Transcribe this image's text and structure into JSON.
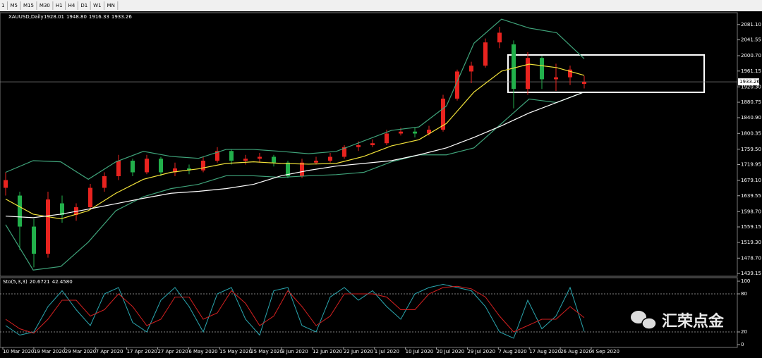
{
  "toolbar": {
    "buttons": [
      "1",
      "M5",
      "M15",
      "M30",
      "H1",
      "H4",
      "D1",
      "W1",
      "MN"
    ]
  },
  "watermark": "汇荣点金",
  "chart_data": [
    {
      "type": "candlestick",
      "title": "XAUUSD,Daily",
      "header_values": [
        "1928.01",
        "1948.80",
        "1916.33",
        "1933.26"
      ],
      "up_color": "#e8231f",
      "down_color": "#22b04b",
      "open": [
        1660,
        1640,
        1560,
        1490,
        1620,
        1590,
        1610,
        1660,
        1690,
        1730,
        1700,
        1735,
        1700,
        1710,
        1705,
        1730,
        1755,
        1730,
        1735,
        1740,
        1725,
        1690,
        1725,
        1730,
        1740,
        1765,
        1770,
        1775,
        1800,
        1805,
        1800,
        1810,
        1890,
        1960,
        1975,
        2035,
        2030,
        1915,
        1995,
        1940,
        1945,
        1928.01
      ],
      "high": [
        1700,
        1650,
        1580,
        1650,
        1640,
        1620,
        1670,
        1700,
        1745,
        1735,
        1745,
        1740,
        1725,
        1720,
        1740,
        1765,
        1760,
        1745,
        1750,
        1745,
        1730,
        1735,
        1740,
        1750,
        1770,
        1780,
        1785,
        1810,
        1815,
        1815,
        1820,
        1900,
        1965,
        1985,
        2045,
        2075,
        2040,
        2010,
        2000,
        1980,
        1975,
        1948.8
      ],
      "low": [
        1640,
        1500,
        1455,
        1480,
        1570,
        1575,
        1605,
        1650,
        1680,
        1690,
        1695,
        1690,
        1690,
        1695,
        1700,
        1725,
        1720,
        1720,
        1725,
        1715,
        1685,
        1685,
        1720,
        1725,
        1735,
        1755,
        1765,
        1770,
        1795,
        1790,
        1795,
        1805,
        1885,
        1930,
        1970,
        2020,
        1865,
        1900,
        1915,
        1910,
        1925,
        1916.33
      ],
      "close": [
        1680,
        1560,
        1490,
        1630,
        1590,
        1610,
        1660,
        1690,
        1730,
        1700,
        1735,
        1700,
        1710,
        1705,
        1730,
        1755,
        1730,
        1735,
        1740,
        1725,
        1690,
        1725,
        1730,
        1740,
        1765,
        1770,
        1775,
        1800,
        1805,
        1800,
        1810,
        1890,
        1960,
        1975,
        2035,
        2060,
        1915,
        1995,
        1940,
        1945,
        1965,
        1933.26
      ],
      "overlays": [
        {
          "color": "#3fa37a",
          "values": [
            1700,
            1730,
            1727,
            1682,
            1727,
            1754,
            1741,
            1736,
            1759,
            1759,
            1754,
            1748,
            1754,
            1781,
            1808,
            1817,
            1871,
            2033,
            2095,
            2072,
            2060,
            1993
          ]
        },
        {
          "color": "#3fa37a",
          "values": [
            1565,
            1448,
            1457,
            1520,
            1601,
            1637,
            1658,
            1669,
            1691,
            1691,
            1687,
            1691,
            1694,
            1700,
            1727,
            1745,
            1745,
            1763,
            1826,
            1889,
            1880,
            1907
          ]
        },
        {
          "color": "#f2e33a",
          "values": [
            1631,
            1592,
            1580,
            1601,
            1646,
            1682,
            1700,
            1709,
            1723,
            1727,
            1723,
            1721,
            1723,
            1741,
            1768,
            1784,
            1826,
            1907,
            1961,
            1979,
            1970,
            1950
          ]
        },
        {
          "color": "#ffffff",
          "values": [
            1587,
            1583,
            1592,
            1605,
            1619,
            1633,
            1646,
            1651,
            1658,
            1669,
            1691,
            1705,
            1716,
            1723,
            1730,
            1745,
            1763,
            1790,
            1820,
            1853,
            1880,
            1907
          ]
        }
      ],
      "last_price": {
        "value": 1933.26,
        "label": "1933.26"
      },
      "ylim": [
        1435.6,
        2108
      ],
      "yticks": [
        {
          "value": 2081.1,
          "label": "2081.10"
        },
        {
          "value": 2041.55,
          "label": "2041.55"
        },
        {
          "value": 2000.7,
          "label": "2000.70"
        },
        {
          "value": 1961.15,
          "label": "1961.15"
        },
        {
          "value": 1920.3,
          "label": "1920.30"
        },
        {
          "value": 1880.75,
          "label": "1880.75"
        },
        {
          "value": 1840.9,
          "label": "1840.90"
        },
        {
          "value": 1800.35,
          "label": "1800.35"
        },
        {
          "value": 1759.5,
          "label": "1759.50"
        },
        {
          "value": 1719.95,
          "label": "1719.95"
        },
        {
          "value": 1679.1,
          "label": "1679.10"
        },
        {
          "value": 1639.55,
          "label": "1639.55"
        },
        {
          "value": 1598.7,
          "label": "1598.70"
        },
        {
          "value": 1559.15,
          "label": "1559.15"
        },
        {
          "value": 1519.3,
          "label": "1519.30"
        },
        {
          "value": 1478.7,
          "label": "1478.70"
        },
        {
          "value": 1439.15,
          "label": "1439.15"
        }
      ],
      "x_labels": [
        "10 Mar 2020",
        "19 Mar 2020",
        "29 Mar 2020",
        "7 Apr 2020",
        "17 Apr 2020",
        "27 Apr 2020",
        "6 May 2020",
        "15 May 2020",
        "25 May 2020",
        "3 Jun 2020",
        "12 Jun 2020",
        "22 Jun 2020",
        "1 Jul 2020",
        "10 Jul 2020",
        "20 Jul 2020",
        "29 Jul 2020",
        "7 Aug 2020",
        "17 Aug 2020",
        "26 Aug 2020",
        "4 Sep 2020"
      ]
    },
    {
      "type": "line",
      "title": "Sto(5,3,3)",
      "series": [
        {
          "color": "#2aa7b0",
          "last_label": "20.6721",
          "values": [
            30,
            15,
            20,
            60,
            85,
            55,
            30,
            80,
            90,
            35,
            20,
            70,
            90,
            60,
            20,
            80,
            90,
            40,
            15,
            85,
            90,
            30,
            20,
            75,
            90,
            70,
            85,
            60,
            40,
            80,
            90,
            95,
            90,
            85,
            60,
            20,
            10,
            70,
            25,
            45,
            90,
            20.6721
          ]
        },
        {
          "color": "#d42020",
          "last_label": "42.4580",
          "values": [
            40,
            25,
            18,
            40,
            70,
            70,
            45,
            55,
            80,
            60,
            30,
            40,
            75,
            75,
            40,
            50,
            85,
            65,
            30,
            45,
            85,
            60,
            30,
            45,
            80,
            80,
            80,
            75,
            55,
            55,
            80,
            90,
            92,
            88,
            75,
            45,
            20,
            30,
            40,
            40,
            60,
            42.458
          ]
        }
      ],
      "levels": [
        20,
        80
      ],
      "ylim": [
        0,
        100
      ],
      "yticks": [
        0,
        20,
        80,
        100
      ]
    }
  ]
}
